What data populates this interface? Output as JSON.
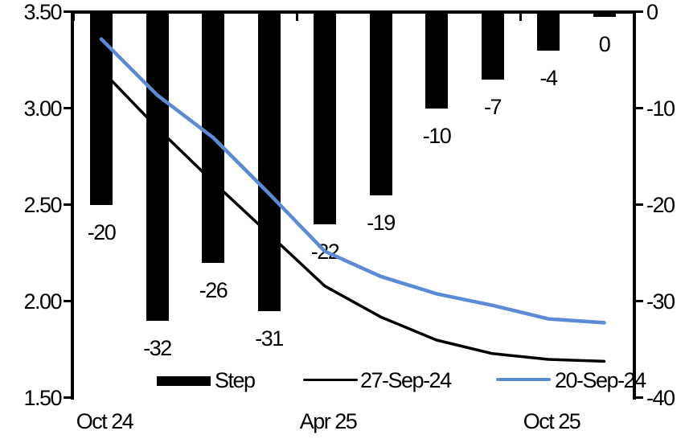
{
  "chart_data": {
    "type": "bar-line-combo",
    "title": "",
    "bar_series": {
      "name": "Step",
      "axis": "right",
      "color": "#000000",
      "values": [
        -20,
        -32,
        -26,
        -31,
        -22,
        -19,
        -10,
        -7,
        -4,
        0
      ],
      "data_labels": [
        "-20",
        "-32",
        "-26",
        "-31",
        "-22",
        "-19",
        "-10",
        "-7",
        "-4",
        "0"
      ]
    },
    "line_series": [
      {
        "name": "27-Sep-24",
        "axis": "left",
        "color": "#000000",
        "values": [
          3.2,
          2.9,
          2.62,
          2.35,
          2.08,
          1.92,
          1.8,
          1.73,
          1.7,
          1.69
        ]
      },
      {
        "name": "20-Sep-24",
        "axis": "left",
        "color": "#5B8BD5",
        "values": [
          3.36,
          3.07,
          2.85,
          2.56,
          2.26,
          2.13,
          2.04,
          1.98,
          1.91,
          1.89
        ]
      }
    ],
    "x_axis": {
      "num_categories": 10,
      "tick_labels": [
        {
          "label": "Oct 24",
          "index": 0
        },
        {
          "label": "Apr 25",
          "index": 4
        },
        {
          "label": "Oct 25",
          "index": 8
        }
      ]
    },
    "left_axis": {
      "min": 1.5,
      "max": 3.5,
      "tick_labels": [
        "3.50",
        "3.00",
        "2.50",
        "2.00",
        "1.50"
      ]
    },
    "right_axis": {
      "min": -40,
      "max": 0,
      "tick_labels": [
        "0",
        "-10",
        "-20",
        "-30",
        "-40"
      ]
    },
    "legend": [
      {
        "label": "Step",
        "type": "bar",
        "color": "#000000"
      },
      {
        "label": "27-Sep-24",
        "type": "line",
        "color": "#000000"
      },
      {
        "label": "20-Sep-24",
        "type": "line",
        "color": "#5B8BD5"
      }
    ],
    "layout_hints": {
      "grid": false,
      "legend_position": "bottom",
      "bars_hang_from_top_zero_line": true
    }
  }
}
